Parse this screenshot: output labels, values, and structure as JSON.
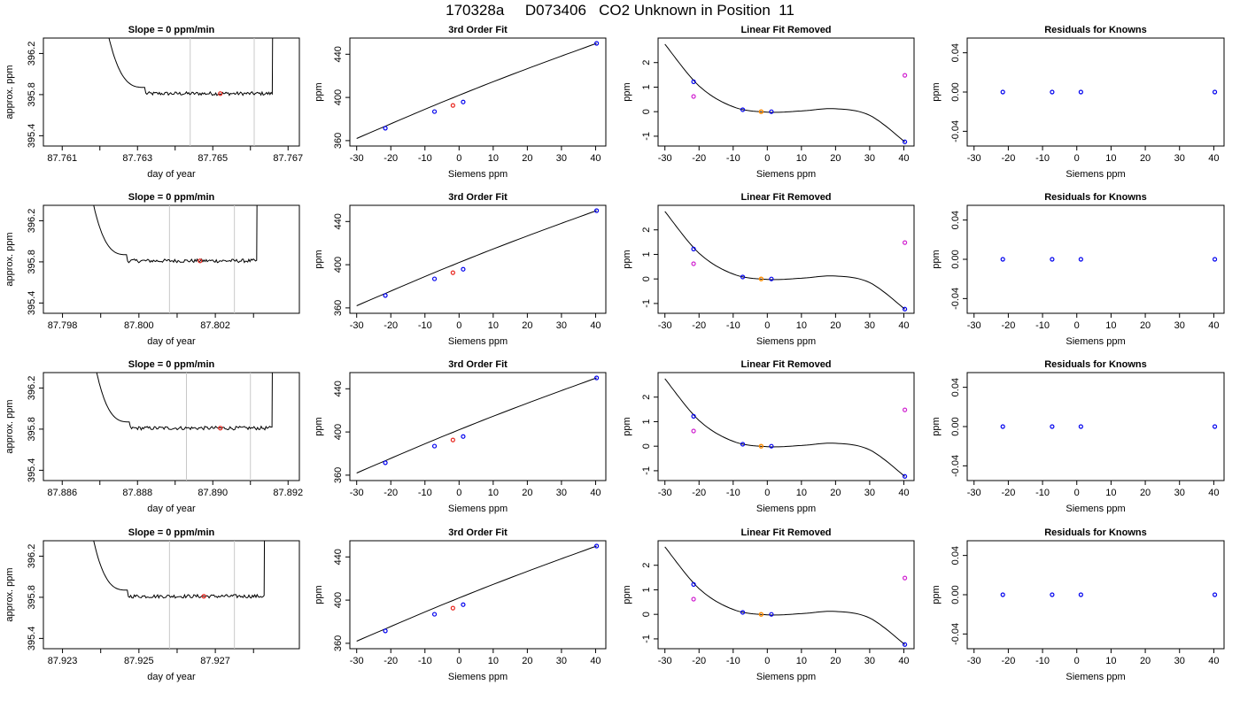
{
  "page": {
    "title": "170328a     D073406   CO2 Unknown in Position  11"
  },
  "chart_data": [
    {
      "type": "line",
      "panel": "time-trace",
      "row": 0,
      "title": "Slope =  0  ppm/min",
      "xlabel": "day of year",
      "ylabel": "approx. ppm",
      "xlim": [
        87.7605,
        87.7673
      ],
      "ylim": [
        395.3,
        396.35
      ],
      "x_ticks": [
        "87.761",
        "87.763",
        "87.765",
        "87.767"
      ],
      "y_ticks": [
        "395.4",
        "395.8",
        "396.2"
      ],
      "minor_x_ticks": [
        87.762,
        87.764,
        87.766
      ],
      "trace": {
        "x_start": 87.7619,
        "x_end": 87.7667,
        "level": 395.81,
        "rise_end": 87.7632,
        "fall_start": 87.7666
      },
      "vlines": [
        87.7644,
        87.7661
      ],
      "marker": {
        "x": 87.7652,
        "y": 395.81,
        "color": "#e8241c"
      }
    },
    {
      "type": "scatter",
      "panel": "cubic-fit",
      "row": 0,
      "title": "3rd Order Fit",
      "xlabel": "Siemens ppm",
      "ylabel": "ppm",
      "xlim": [
        -32,
        43
      ],
      "ylim": [
        355,
        455
      ],
      "x_ticks": [
        "-30",
        "-20",
        "-10",
        "0",
        "10",
        "20",
        "30",
        "40"
      ],
      "y_ticks": [
        "360",
        "400",
        "440"
      ],
      "points": [
        {
          "x": -21.6,
          "y": 371.5,
          "color": "#0000ee"
        },
        {
          "x": -7.2,
          "y": 386.9,
          "color": "#0000ee"
        },
        {
          "x": 1.2,
          "y": 395.8,
          "color": "#0000ee"
        },
        {
          "x": 40.3,
          "y": 450.1,
          "color": "#0000ee"
        },
        {
          "x": -1.8,
          "y": 392.6,
          "color": "#e8241c"
        }
      ],
      "fit_line": {
        "x_from": -30,
        "x_to": 40.3,
        "y_from": 362.0,
        "y_to": 450.1
      }
    },
    {
      "type": "scatter",
      "panel": "linear-removed",
      "row": 0,
      "title": "Linear Fit Removed",
      "xlabel": "Siemens ppm",
      "ylabel": "ppm",
      "xlim": [
        -32,
        43
      ],
      "ylim": [
        -1.4,
        3.0
      ],
      "x_ticks": [
        "-30",
        "-20",
        "-10",
        "0",
        "10",
        "20",
        "30",
        "40"
      ],
      "y_ticks": [
        "-1",
        "0",
        "1",
        "2"
      ],
      "knowns": [
        {
          "x": -21.6,
          "y": 1.22
        },
        {
          "x": -7.2,
          "y": 0.08
        },
        {
          "x": 1.2,
          "y": 0.0
        },
        {
          "x": 40.3,
          "y": -1.23
        }
      ],
      "magenta": [
        {
          "x": -21.6,
          "y": 0.62
        },
        {
          "x": 40.3,
          "y": 1.48
        }
      ],
      "unknown": {
        "x": -1.8,
        "y": 0.0
      },
      "cubic": [
        -30,
        2.75,
        -20,
        1.05,
        -10,
        0.2,
        0,
        -0.02,
        10,
        0.03,
        20,
        0.12,
        30,
        -0.15,
        40.3,
        -1.23
      ]
    },
    {
      "type": "scatter",
      "panel": "residuals",
      "row": 0,
      "title": "Residuals for Knowns",
      "xlabel": "Siemens ppm",
      "ylabel": "ppm",
      "xlim": [
        -32,
        43
      ],
      "ylim": [
        -0.055,
        0.055
      ],
      "x_ticks": [
        "-30",
        "-20",
        "-10",
        "0",
        "10",
        "20",
        "30",
        "40"
      ],
      "y_ticks": [
        "-0.04",
        "0.00",
        "0.04"
      ],
      "points": [
        {
          "x": -21.6,
          "y": 0.0
        },
        {
          "x": -7.2,
          "y": 0.0
        },
        {
          "x": 1.2,
          "y": 0.0
        },
        {
          "x": 40.3,
          "y": 0.0
        }
      ]
    },
    {
      "type": "line",
      "panel": "time-trace",
      "row": 1,
      "title": "Slope =  0  ppm/min",
      "xlabel": "day of year",
      "ylabel": "approx. ppm",
      "xlim": [
        87.7975,
        87.8042
      ],
      "ylim": [
        395.3,
        396.35
      ],
      "x_ticks": [
        "87.798",
        "87.800",
        "87.802"
      ],
      "y_ticks": [
        "395.4",
        "395.8",
        "396.2"
      ],
      "minor_x_ticks": [
        87.799,
        87.801,
        87.803
      ],
      "trace": {
        "x_start": 87.7985,
        "x_end": 87.8032,
        "level": 395.81,
        "rise_end": 87.7997,
        "fall_start": 87.8031
      },
      "vlines": [
        87.8008,
        87.8025
      ],
      "marker": {
        "x": 87.8016,
        "y": 395.81,
        "color": "#e8241c"
      }
    },
    {
      "type": "scatter",
      "panel": "cubic-fit",
      "row": 1,
      "title": "3rd Order Fit",
      "xlabel": "Siemens ppm",
      "ylabel": "ppm",
      "xlim": [
        -32,
        43
      ],
      "ylim": [
        355,
        455
      ],
      "x_ticks": [
        "-30",
        "-20",
        "-10",
        "0",
        "10",
        "20",
        "30",
        "40"
      ],
      "y_ticks": [
        "360",
        "400",
        "440"
      ],
      "points": [
        {
          "x": -21.6,
          "y": 371.5,
          "color": "#0000ee"
        },
        {
          "x": -7.2,
          "y": 386.9,
          "color": "#0000ee"
        },
        {
          "x": 1.2,
          "y": 395.8,
          "color": "#0000ee"
        },
        {
          "x": 40.3,
          "y": 450.1,
          "color": "#0000ee"
        },
        {
          "x": -1.8,
          "y": 392.6,
          "color": "#e8241c"
        }
      ],
      "fit_line": {
        "x_from": -30,
        "x_to": 40.3,
        "y_from": 362.0,
        "y_to": 450.1
      }
    },
    {
      "type": "scatter",
      "panel": "linear-removed",
      "row": 1,
      "title": "Linear Fit Removed",
      "xlabel": "Siemens ppm",
      "ylabel": "ppm",
      "xlim": [
        -32,
        43
      ],
      "ylim": [
        -1.4,
        3.0
      ],
      "x_ticks": [
        "-30",
        "-20",
        "-10",
        "0",
        "10",
        "20",
        "30",
        "40"
      ],
      "y_ticks": [
        "-1",
        "0",
        "1",
        "2"
      ],
      "knowns": [
        {
          "x": -21.6,
          "y": 1.22
        },
        {
          "x": -7.2,
          "y": 0.08
        },
        {
          "x": 1.2,
          "y": 0.0
        },
        {
          "x": 40.3,
          "y": -1.23
        }
      ],
      "magenta": [
        {
          "x": -21.6,
          "y": 0.62
        },
        {
          "x": 40.3,
          "y": 1.48
        }
      ],
      "unknown": {
        "x": -1.8,
        "y": 0.0
      },
      "cubic": [
        -30,
        2.75,
        -20,
        1.05,
        -10,
        0.2,
        0,
        -0.02,
        10,
        0.03,
        20,
        0.12,
        30,
        -0.15,
        40.3,
        -1.23
      ]
    },
    {
      "type": "scatter",
      "panel": "residuals",
      "row": 1,
      "title": "Residuals for Knowns",
      "xlabel": "Siemens ppm",
      "ylabel": "ppm",
      "xlim": [
        -32,
        43
      ],
      "ylim": [
        -0.055,
        0.055
      ],
      "x_ticks": [
        "-30",
        "-20",
        "-10",
        "0",
        "10",
        "20",
        "30",
        "40"
      ],
      "y_ticks": [
        "-0.04",
        "0.00",
        "0.04"
      ],
      "points": [
        {
          "x": -21.6,
          "y": 0.0
        },
        {
          "x": -7.2,
          "y": 0.0
        },
        {
          "x": 1.2,
          "y": 0.0
        },
        {
          "x": 40.3,
          "y": 0.0
        }
      ]
    },
    {
      "type": "line",
      "panel": "time-trace",
      "row": 2,
      "title": "Slope =  0  ppm/min",
      "xlabel": "day of year",
      "ylabel": "approx. ppm",
      "xlim": [
        87.8855,
        87.8923
      ],
      "ylim": [
        395.3,
        396.35
      ],
      "x_ticks": [
        "87.886",
        "87.888",
        "87.890",
        "87.892"
      ],
      "y_ticks": [
        "395.4",
        "395.8",
        "396.2"
      ],
      "minor_x_ticks": [
        87.887,
        87.889,
        87.891
      ],
      "trace": {
        "x_start": 87.8866,
        "x_end": 87.8917,
        "level": 395.81,
        "rise_end": 87.8878,
        "fall_start": 87.8916
      },
      "vlines": [
        87.8893,
        87.891
      ],
      "marker": {
        "x": 87.8902,
        "y": 395.81,
        "color": "#e8241c"
      }
    },
    {
      "type": "scatter",
      "panel": "cubic-fit",
      "row": 2,
      "title": "3rd Order Fit",
      "xlabel": "Siemens ppm",
      "ylabel": "ppm",
      "xlim": [
        -32,
        43
      ],
      "ylim": [
        355,
        455
      ],
      "x_ticks": [
        "-30",
        "-20",
        "-10",
        "0",
        "10",
        "20",
        "30",
        "40"
      ],
      "y_ticks": [
        "360",
        "400",
        "440"
      ],
      "points": [
        {
          "x": -21.6,
          "y": 371.5,
          "color": "#0000ee"
        },
        {
          "x": -7.2,
          "y": 386.9,
          "color": "#0000ee"
        },
        {
          "x": 1.2,
          "y": 395.8,
          "color": "#0000ee"
        },
        {
          "x": 40.3,
          "y": 450.1,
          "color": "#0000ee"
        },
        {
          "x": -1.8,
          "y": 392.6,
          "color": "#e8241c"
        }
      ],
      "fit_line": {
        "x_from": -30,
        "x_to": 40.3,
        "y_from": 362.0,
        "y_to": 450.1
      }
    },
    {
      "type": "scatter",
      "panel": "linear-removed",
      "row": 2,
      "title": "Linear Fit Removed",
      "xlabel": "Siemens ppm",
      "ylabel": "ppm",
      "xlim": [
        -32,
        43
      ],
      "ylim": [
        -1.4,
        3.0
      ],
      "x_ticks": [
        "-30",
        "-20",
        "-10",
        "0",
        "10",
        "20",
        "30",
        "40"
      ],
      "y_ticks": [
        "-1",
        "0",
        "1",
        "2"
      ],
      "knowns": [
        {
          "x": -21.6,
          "y": 1.22
        },
        {
          "x": -7.2,
          "y": 0.08
        },
        {
          "x": 1.2,
          "y": 0.0
        },
        {
          "x": 40.3,
          "y": -1.23
        }
      ],
      "magenta": [
        {
          "x": -21.6,
          "y": 0.62
        },
        {
          "x": 40.3,
          "y": 1.48
        }
      ],
      "unknown": {
        "x": -1.8,
        "y": 0.0
      },
      "cubic": [
        -30,
        2.75,
        -20,
        1.05,
        -10,
        0.2,
        0,
        -0.02,
        10,
        0.03,
        20,
        0.12,
        30,
        -0.15,
        40.3,
        -1.23
      ]
    },
    {
      "type": "scatter",
      "panel": "residuals",
      "row": 2,
      "title": "Residuals for Knowns",
      "xlabel": "Siemens ppm",
      "ylabel": "ppm",
      "xlim": [
        -32,
        43
      ],
      "ylim": [
        -0.055,
        0.055
      ],
      "x_ticks": [
        "-30",
        "-20",
        "-10",
        "0",
        "10",
        "20",
        "30",
        "40"
      ],
      "y_ticks": [
        "-0.04",
        "0.00",
        "0.04"
      ],
      "points": [
        {
          "x": -21.6,
          "y": 0.0
        },
        {
          "x": -7.2,
          "y": 0.0
        },
        {
          "x": 1.2,
          "y": 0.0
        },
        {
          "x": 40.3,
          "y": 0.0
        }
      ]
    },
    {
      "type": "line",
      "panel": "time-trace",
      "row": 3,
      "title": "Slope =  0  ppm/min",
      "xlabel": "day of year",
      "ylabel": "approx. ppm",
      "xlim": [
        87.9225,
        87.9292
      ],
      "ylim": [
        395.3,
        396.35
      ],
      "x_ticks": [
        "87.923",
        "87.925",
        "87.927"
      ],
      "y_ticks": [
        "395.4",
        "395.8",
        "396.2"
      ],
      "minor_x_ticks": [
        87.924,
        87.926,
        87.928
      ],
      "trace": {
        "x_start": 87.9235,
        "x_end": 87.9284,
        "level": 395.81,
        "rise_end": 87.9247,
        "fall_start": 87.9283
      },
      "vlines": [
        87.9258,
        87.9275
      ],
      "marker": {
        "x": 87.9267,
        "y": 395.81,
        "color": "#e8241c"
      }
    },
    {
      "type": "scatter",
      "panel": "cubic-fit",
      "row": 3,
      "title": "3rd Order Fit",
      "xlabel": "Siemens ppm",
      "ylabel": "ppm",
      "xlim": [
        -32,
        43
      ],
      "ylim": [
        355,
        455
      ],
      "x_ticks": [
        "-30",
        "-20",
        "-10",
        "0",
        "10",
        "20",
        "30",
        "40"
      ],
      "y_ticks": [
        "360",
        "400",
        "440"
      ],
      "points": [
        {
          "x": -21.6,
          "y": 371.5,
          "color": "#0000ee"
        },
        {
          "x": -7.2,
          "y": 386.9,
          "color": "#0000ee"
        },
        {
          "x": 1.2,
          "y": 395.8,
          "color": "#0000ee"
        },
        {
          "x": 40.3,
          "y": 450.1,
          "color": "#0000ee"
        },
        {
          "x": -1.8,
          "y": 392.6,
          "color": "#e8241c"
        }
      ],
      "fit_line": {
        "x_from": -30,
        "x_to": 40.3,
        "y_from": 362.0,
        "y_to": 450.1
      }
    },
    {
      "type": "scatter",
      "panel": "linear-removed",
      "row": 3,
      "title": "Linear Fit Removed",
      "xlabel": "Siemens ppm",
      "ylabel": "ppm",
      "xlim": [
        -32,
        43
      ],
      "ylim": [
        -1.4,
        3.0
      ],
      "x_ticks": [
        "-30",
        "-20",
        "-10",
        "0",
        "10",
        "20",
        "30",
        "40"
      ],
      "y_ticks": [
        "-1",
        "0",
        "1",
        "2"
      ],
      "knowns": [
        {
          "x": -21.6,
          "y": 1.22
        },
        {
          "x": -7.2,
          "y": 0.08
        },
        {
          "x": 1.2,
          "y": 0.0
        },
        {
          "x": 40.3,
          "y": -1.23
        }
      ],
      "magenta": [
        {
          "x": -21.6,
          "y": 0.62
        },
        {
          "x": 40.3,
          "y": 1.48
        }
      ],
      "unknown": {
        "x": -1.8,
        "y": 0.0
      },
      "cubic": [
        -30,
        2.75,
        -20,
        1.05,
        -10,
        0.2,
        0,
        -0.02,
        10,
        0.03,
        20,
        0.12,
        30,
        -0.15,
        40.3,
        -1.23
      ]
    },
    {
      "type": "scatter",
      "panel": "residuals",
      "row": 3,
      "title": "Residuals for Knowns",
      "xlabel": "Siemens ppm",
      "ylabel": "ppm",
      "xlim": [
        -32,
        43
      ],
      "ylim": [
        -0.055,
        0.055
      ],
      "x_ticks": [
        "-30",
        "-20",
        "-10",
        "0",
        "10",
        "20",
        "30",
        "40"
      ],
      "y_ticks": [
        "-0.04",
        "0.00",
        "0.04"
      ],
      "points": [
        {
          "x": -21.6,
          "y": 0.0
        },
        {
          "x": -7.2,
          "y": 0.0
        },
        {
          "x": 1.2,
          "y": 0.0
        },
        {
          "x": 40.3,
          "y": 0.0
        }
      ]
    }
  ],
  "colors": {
    "axis": "#000000",
    "vline": "#c8c8c8",
    "known": "#0000ee",
    "unknown_trace": "#e8241c",
    "unknown_fit": "#ff8c00",
    "magenta": "#d020d0"
  }
}
